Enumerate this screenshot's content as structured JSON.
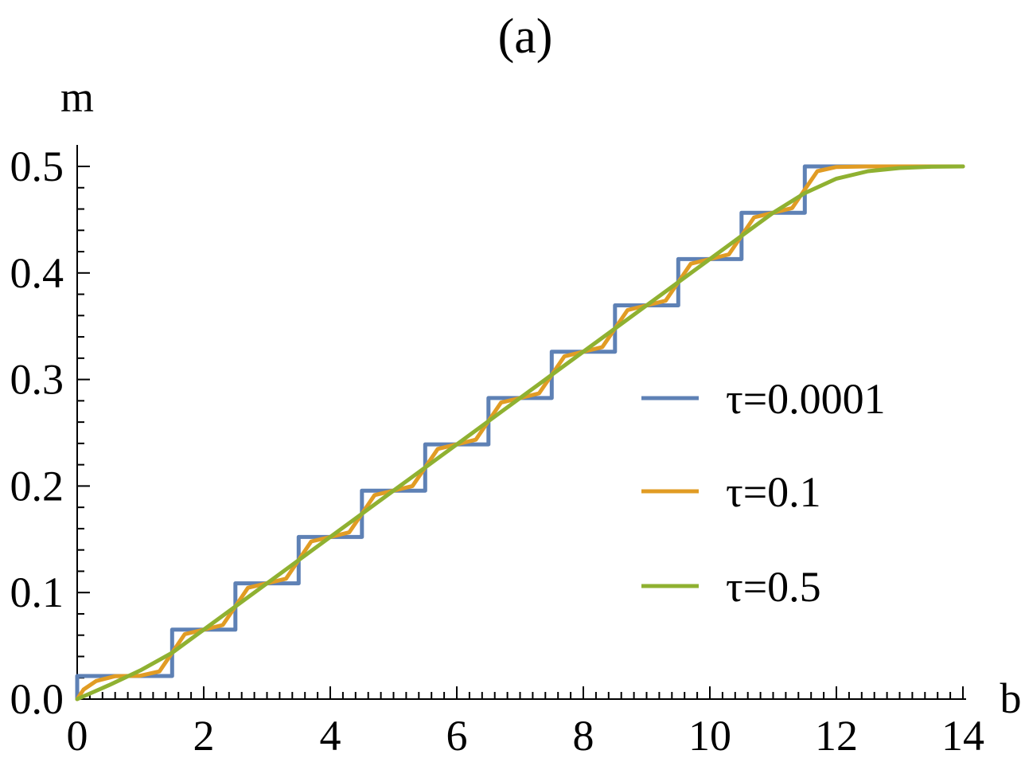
{
  "chart_data": {
    "type": "line",
    "title": "(a)",
    "xlabel": "b",
    "ylabel": "m",
    "xlim": [
      0,
      14
    ],
    "ylim": [
      0,
      0.5
    ],
    "x_ticks": [
      {
        "value": 0,
        "label": "0"
      },
      {
        "value": 2,
        "label": "2"
      },
      {
        "value": 4,
        "label": "4"
      },
      {
        "value": 6,
        "label": "6"
      },
      {
        "value": 8,
        "label": "8"
      },
      {
        "value": 10,
        "label": "10"
      },
      {
        "value": 12,
        "label": "12"
      },
      {
        "value": 14,
        "label": "14"
      }
    ],
    "y_ticks": [
      {
        "value": 0.0,
        "label": "0.0"
      },
      {
        "value": 0.1,
        "label": "0.1"
      },
      {
        "value": 0.2,
        "label": "0.2"
      },
      {
        "value": 0.3,
        "label": "0.3"
      },
      {
        "value": 0.4,
        "label": "0.4"
      },
      {
        "value": 0.5,
        "label": "0.5"
      }
    ],
    "grid": false,
    "legend_position": "right",
    "series": [
      {
        "name": "τ=0.0001",
        "color": "#5E81B5",
        "x": [
          0,
          0,
          1.5,
          1.5,
          2.5,
          2.5,
          3.5,
          3.5,
          4.5,
          4.5,
          5.5,
          5.5,
          6.5,
          6.5,
          7.5,
          7.5,
          8.5,
          8.5,
          9.5,
          9.5,
          10.5,
          10.5,
          11.5,
          11.5,
          14
        ],
        "y": [
          0,
          0.0217,
          0.0217,
          0.0652,
          0.0652,
          0.1087,
          0.1087,
          0.1522,
          0.1522,
          0.1957,
          0.1957,
          0.2391,
          0.2391,
          0.2826,
          0.2826,
          0.3261,
          0.3261,
          0.3696,
          0.3696,
          0.413,
          0.413,
          0.4565,
          0.4565,
          0.5,
          0.5
        ]
      },
      {
        "name": "τ=0.1",
        "color": "#E19C24",
        "x": [
          0,
          0.1,
          0.3,
          0.6,
          1.0,
          1.3,
          1.5,
          1.7,
          2.0,
          2.3,
          2.5,
          2.7,
          3.0,
          3.3,
          3.5,
          3.7,
          4.0,
          4.3,
          4.5,
          4.7,
          5.0,
          5.3,
          5.5,
          5.7,
          6.0,
          6.3,
          6.5,
          6.7,
          7.0,
          7.3,
          7.5,
          7.7,
          8.0,
          8.3,
          8.5,
          8.7,
          9.0,
          9.3,
          9.5,
          9.7,
          10.0,
          10.3,
          10.5,
          10.7,
          11.0,
          11.3,
          11.5,
          11.7,
          12.0,
          12.5,
          13.0,
          14.0
        ],
        "y": [
          0,
          0.009,
          0.017,
          0.0215,
          0.022,
          0.026,
          0.0435,
          0.061,
          0.0652,
          0.0695,
          0.087,
          0.1045,
          0.1087,
          0.113,
          0.1305,
          0.148,
          0.1522,
          0.1565,
          0.174,
          0.1915,
          0.1957,
          0.2,
          0.2174,
          0.2348,
          0.2391,
          0.2435,
          0.2609,
          0.2783,
          0.2826,
          0.287,
          0.3043,
          0.3217,
          0.3261,
          0.3304,
          0.3478,
          0.3652,
          0.3696,
          0.3739,
          0.3913,
          0.4087,
          0.413,
          0.4174,
          0.4348,
          0.4522,
          0.4565,
          0.4609,
          0.4783,
          0.4955,
          0.4995,
          0.5,
          0.5,
          0.5
        ]
      },
      {
        "name": "τ=0.5",
        "color": "#8FB131",
        "x": [
          0,
          0.5,
          1.0,
          1.5,
          2.0,
          3.0,
          4.0,
          5.0,
          6.0,
          7.0,
          8.0,
          9.0,
          10.0,
          11.0,
          11.5,
          12.0,
          12.5,
          13.0,
          13.5,
          14.0
        ],
        "y": [
          0,
          0.013,
          0.027,
          0.0435,
          0.0652,
          0.1087,
          0.1522,
          0.1957,
          0.2391,
          0.2826,
          0.3261,
          0.3696,
          0.413,
          0.4565,
          0.475,
          0.4885,
          0.4955,
          0.4985,
          0.4997,
          0.5
        ]
      }
    ]
  }
}
